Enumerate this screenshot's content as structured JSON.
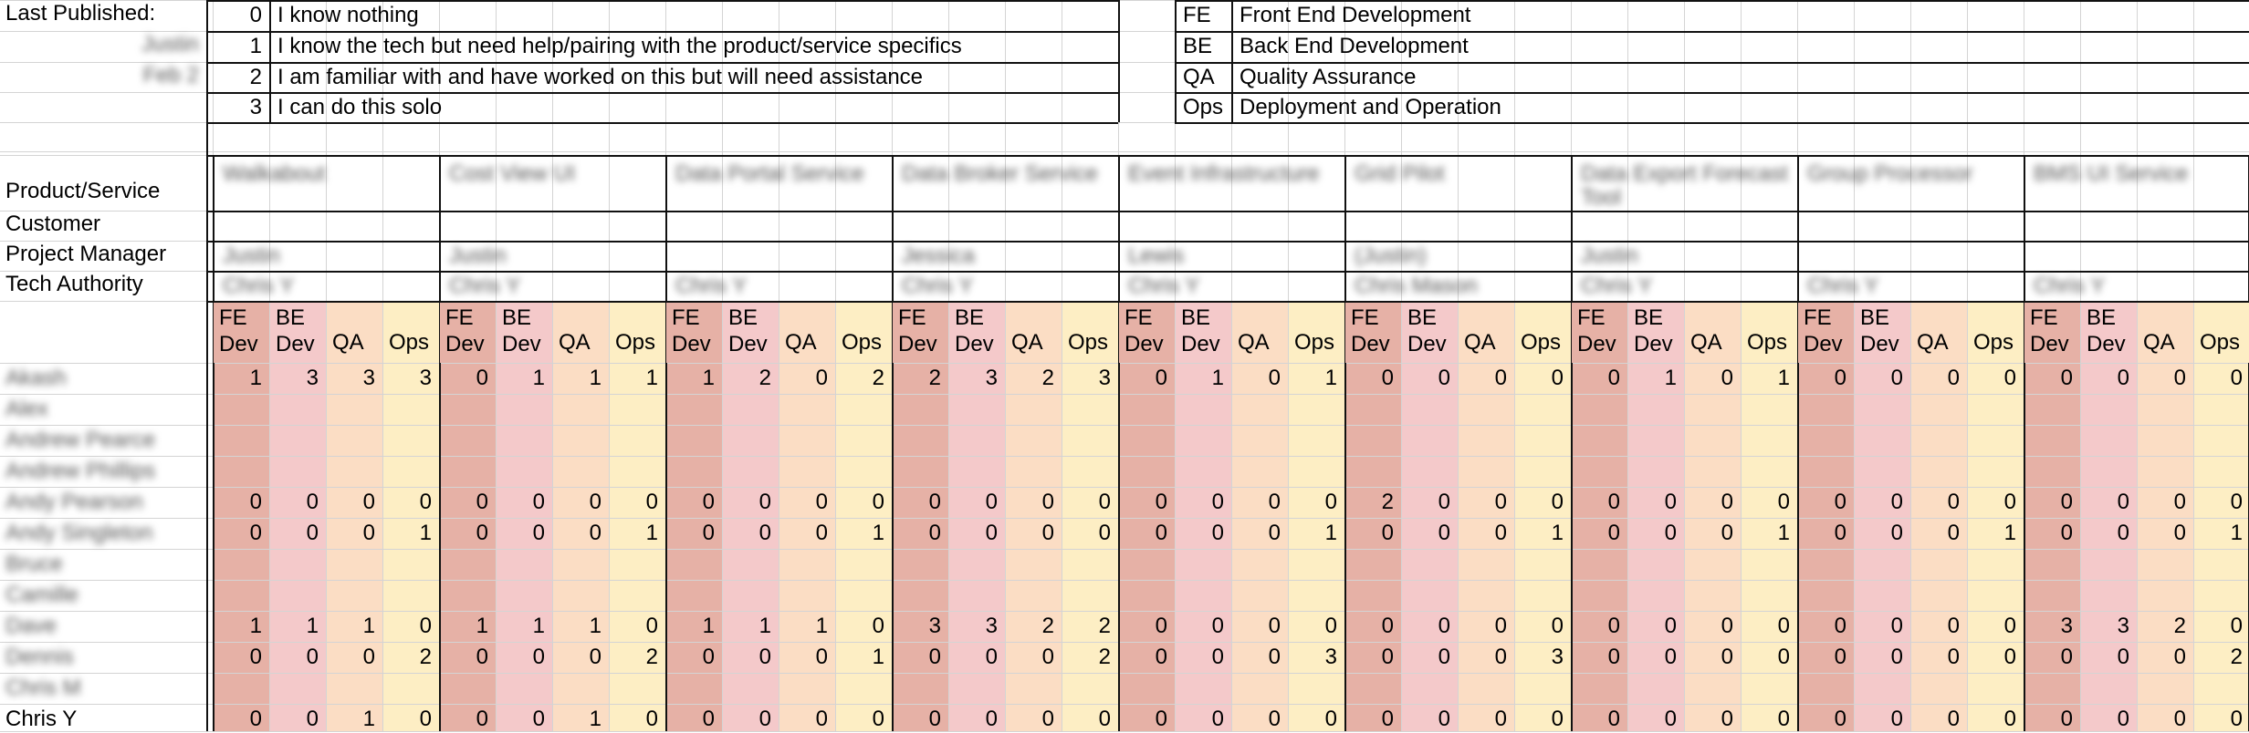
{
  "header": {
    "last_published_label": "Last Published:",
    "published_by_blurred": [
      "Justin",
      "Feb 2"
    ]
  },
  "legend_levels": [
    {
      "level": "0",
      "text": "I know nothing"
    },
    {
      "level": "1",
      "text": "I know the tech but need help/pairing with the product/service specifics"
    },
    {
      "level": "2",
      "text": "I am familiar with and have worked on this but will need assistance"
    },
    {
      "level": "3",
      "text": "I can do this solo"
    }
  ],
  "legend_roles": [
    {
      "code": "FE",
      "text": "Front End Development"
    },
    {
      "code": "BE",
      "text": "Back End Development"
    },
    {
      "code": "QA",
      "text": "Quality Assurance"
    },
    {
      "code": "Ops",
      "text": "Deployment and Operation"
    }
  ],
  "row_labels": {
    "product": "Product/Service",
    "customer": "Customer",
    "pm": "Project Manager",
    "ta": "Tech Authority"
  },
  "skill_headers": [
    "FE\nDev",
    "BE\nDev",
    "QA",
    "Ops"
  ],
  "projects": [
    {
      "product": "Walkabout",
      "customer": "",
      "pm": "Justin",
      "ta": "Chris Y"
    },
    {
      "product": "Cost View UI",
      "customer": "",
      "pm": "Justin",
      "ta": "Chris Y"
    },
    {
      "product": "Data Portal Service",
      "customer": "",
      "pm": "",
      "ta": "Chris Y"
    },
    {
      "product": "Data Broker Service",
      "customer": "",
      "pm": "Jessica",
      "ta": "Chris Y"
    },
    {
      "product": "Event Infrastructure",
      "customer": "",
      "pm": "Lewis",
      "ta": "Chris Y"
    },
    {
      "product": "Grid Pilot",
      "customer": "",
      "pm": "(Justin)",
      "ta": "Chris Mason"
    },
    {
      "product": "Data Export Forecast Tool",
      "customer": "",
      "pm": "Justin",
      "ta": "Chris Y"
    },
    {
      "product": "Group Processor",
      "customer": "",
      "pm": "",
      "ta": "Chris Y"
    },
    {
      "product": "BMS UI Service",
      "customer": "",
      "pm": "",
      "ta": "Chris Y"
    }
  ],
  "people": [
    {
      "name": "Akash",
      "blurred": true,
      "values": [
        [
          1,
          3,
          3,
          3
        ],
        [
          0,
          1,
          1,
          1
        ],
        [
          1,
          2,
          0,
          2
        ],
        [
          2,
          3,
          2,
          3
        ],
        [
          0,
          1,
          0,
          1
        ],
        [
          0,
          0,
          0,
          0
        ],
        [
          0,
          1,
          0,
          1
        ],
        [
          0,
          0,
          0,
          0
        ],
        [
          0,
          0,
          0,
          0
        ]
      ]
    },
    {
      "name": "Alex",
      "blurred": true,
      "values": []
    },
    {
      "name": "Andrew Pearce",
      "blurred": true,
      "values": []
    },
    {
      "name": "Andrew Phillips",
      "blurred": true,
      "values": []
    },
    {
      "name": "Andy Pearson",
      "blurred": true,
      "values": [
        [
          0,
          0,
          0,
          0
        ],
        [
          0,
          0,
          0,
          0
        ],
        [
          0,
          0,
          0,
          0
        ],
        [
          0,
          0,
          0,
          0
        ],
        [
          0,
          0,
          0,
          0
        ],
        [
          2,
          0,
          0,
          0
        ],
        [
          0,
          0,
          0,
          0
        ],
        [
          0,
          0,
          0,
          0
        ],
        [
          0,
          0,
          0,
          0
        ]
      ]
    },
    {
      "name": "Andy Singleton",
      "blurred": true,
      "values": [
        [
          0,
          0,
          0,
          1
        ],
        [
          0,
          0,
          0,
          1
        ],
        [
          0,
          0,
          0,
          1
        ],
        [
          0,
          0,
          0,
          0
        ],
        [
          0,
          0,
          0,
          1
        ],
        [
          0,
          0,
          0,
          1
        ],
        [
          0,
          0,
          0,
          1
        ],
        [
          0,
          0,
          0,
          1
        ],
        [
          0,
          0,
          0,
          1
        ]
      ]
    },
    {
      "name": "Bruce",
      "blurred": true,
      "values": []
    },
    {
      "name": "Camille",
      "blurred": true,
      "values": []
    },
    {
      "name": "Dave",
      "blurred": true,
      "values": [
        [
          1,
          1,
          1,
          0
        ],
        [
          1,
          1,
          1,
          0
        ],
        [
          1,
          1,
          1,
          0
        ],
        [
          3,
          3,
          2,
          2
        ],
        [
          0,
          0,
          0,
          0
        ],
        [
          0,
          0,
          0,
          0
        ],
        [
          0,
          0,
          0,
          0
        ],
        [
          0,
          0,
          0,
          0
        ],
        [
          3,
          3,
          2,
          0
        ]
      ]
    },
    {
      "name": "Dennis",
      "blurred": true,
      "values": [
        [
          0,
          0,
          0,
          2
        ],
        [
          0,
          0,
          0,
          2
        ],
        [
          0,
          0,
          0,
          1
        ],
        [
          0,
          0,
          0,
          2
        ],
        [
          0,
          0,
          0,
          3
        ],
        [
          0,
          0,
          0,
          3
        ],
        [
          0,
          0,
          0,
          0
        ],
        [
          0,
          0,
          0,
          0
        ],
        [
          0,
          0,
          0,
          2
        ]
      ]
    },
    {
      "name": "Chris M",
      "blurred": true,
      "values": []
    },
    {
      "name": "Chris Y",
      "blurred": false,
      "values": [
        [
          0,
          0,
          1,
          0
        ],
        [
          0,
          0,
          1,
          0
        ],
        [
          0,
          0,
          0,
          0
        ],
        [
          0,
          0,
          0,
          0
        ],
        [
          0,
          0,
          0,
          0
        ],
        [
          0,
          0,
          0,
          0
        ],
        [
          0,
          0,
          0,
          0
        ],
        [
          0,
          0,
          0,
          0
        ],
        [
          0,
          0,
          0,
          0
        ]
      ]
    }
  ],
  "colors": {
    "fe_dev": "#e6b1a6",
    "be_dev": "#f4c9ca",
    "qa": "#fbddc4",
    "ops": "#fdeec4",
    "grid_line": "#d4d4d4",
    "border": "#111111"
  }
}
